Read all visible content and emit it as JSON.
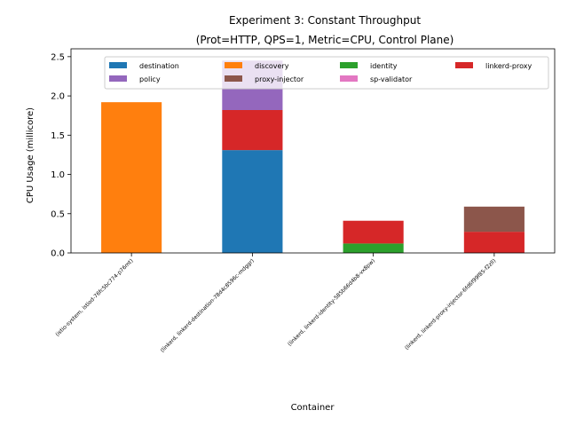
{
  "chart_data": {
    "type": "bar",
    "stacked": true,
    "title": [
      "Experiment 3: Constant Throughput",
      "(Prot=HTTP, QPS=1, Metric=CPU, Control Plane)"
    ],
    "xlabel": "Container",
    "ylabel": "CPU Usage (millicore)",
    "ylim": [
      0,
      2.6
    ],
    "yticks": [
      "0.0",
      "0.5",
      "1.0",
      "1.5",
      "2.0",
      "2.5"
    ],
    "legend_position": "upper center",
    "categories": [
      "(istio-system, istiod-76fc5bc774-p76mt)",
      "(linkerd, linkerd-destination-78d4c8596c-mdggr)",
      "(linkerd, linkerd-identity-585b66d4b8-vx8pw)",
      "(linkerd, linkerd-proxy-injector-6fd6f99f85-f2zll)"
    ],
    "series": [
      {
        "name": "destination",
        "color": "#1f77b4",
        "values": [
          0,
          1.31,
          0,
          0
        ]
      },
      {
        "name": "discovery",
        "color": "#ff7f0e",
        "values": [
          1.92,
          0,
          0,
          0
        ]
      },
      {
        "name": "identity",
        "color": "#2ca02c",
        "values": [
          0,
          0,
          0.12,
          0
        ]
      },
      {
        "name": "linkerd-proxy",
        "color": "#d62728",
        "values": [
          0,
          0.51,
          0.29,
          0.27
        ]
      },
      {
        "name": "policy",
        "color": "#9467bd",
        "values": [
          0,
          0.63,
          0,
          0
        ]
      },
      {
        "name": "proxy-injector",
        "color": "#8c564b",
        "values": [
          0,
          0,
          0,
          0.32
        ]
      },
      {
        "name": "sp-validator",
        "color": "#e377c2",
        "values": [
          0,
          0,
          0,
          0
        ]
      }
    ]
  }
}
